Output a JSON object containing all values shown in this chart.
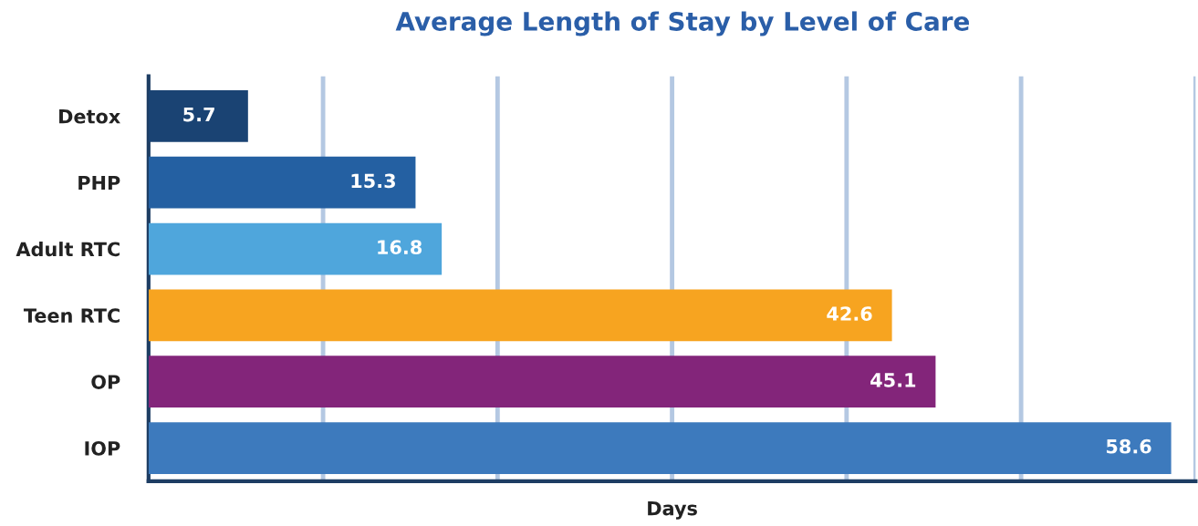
{
  "chart_data": {
    "type": "bar",
    "orientation": "horizontal",
    "title": "Average Length of Stay by Level of Care",
    "xlabel": "Days",
    "categories": [
      "Detox",
      "PHP",
      "Adult RTC",
      "Teen RTC",
      "OP",
      "IOP"
    ],
    "values": [
      5.7,
      15.3,
      16.8,
      42.6,
      45.1,
      58.6
    ],
    "colors": [
      "#1a4373",
      "#2460a2",
      "#4fa6dc",
      "#f7a420",
      "#83257a",
      "#3d7abd"
    ],
    "data_labels": true,
    "grid": "x",
    "xlim": [
      0,
      60
    ],
    "xticks": [
      {
        "value": 10,
        "label": null
      },
      {
        "value": 20,
        "label": null
      },
      {
        "value": 30,
        "label": null
      },
      {
        "value": 40,
        "label": null
      },
      {
        "value": 50,
        "label": null
      },
      {
        "value": 60,
        "label": null
      }
    ]
  }
}
